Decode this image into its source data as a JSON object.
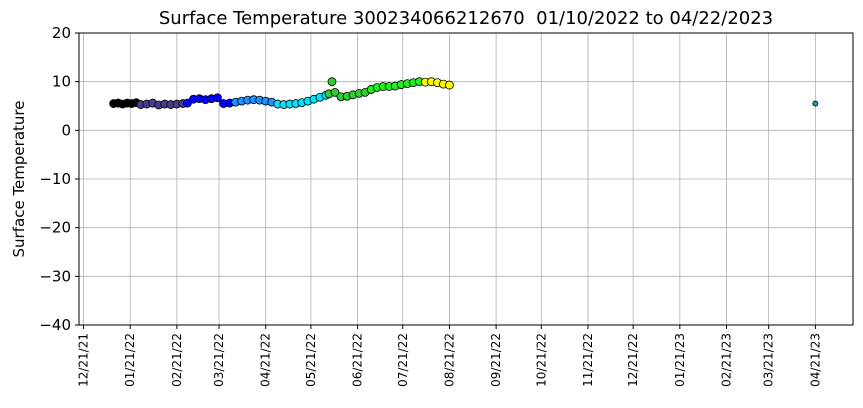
{
  "chart_data": {
    "type": "scatter",
    "title": "Surface Temperature 300234066212670  01/10/2022 to 04/22/2023",
    "ylabel": "Surface Temperature",
    "grid": true,
    "xlim": [
      "2021-12-18",
      "2023-05-16"
    ],
    "ylim": [
      -40,
      20
    ],
    "yticks": [
      {
        "value": -40,
        "label": "−40"
      },
      {
        "value": -30,
        "label": "−30"
      },
      {
        "value": -20,
        "label": "−20"
      },
      {
        "value": -10,
        "label": "−10"
      },
      0,
      10,
      20
    ],
    "xticks": [
      {
        "value": "2021-12-21",
        "label": "12/21/21"
      },
      {
        "value": "2022-01-21",
        "label": "01/21/22"
      },
      {
        "value": "2022-02-21",
        "label": "02/21/22"
      },
      {
        "value": "2022-03-21",
        "label": "03/21/22"
      },
      {
        "value": "2022-04-21",
        "label": "04/21/22"
      },
      {
        "value": "2022-05-21",
        "label": "05/21/22"
      },
      {
        "value": "2022-06-21",
        "label": "06/21/22"
      },
      {
        "value": "2022-07-21",
        "label": "07/21/22"
      },
      {
        "value": "2022-08-21",
        "label": "08/21/22"
      },
      {
        "value": "2022-09-21",
        "label": "09/21/22"
      },
      {
        "value": "2022-10-21",
        "label": "10/21/22"
      },
      {
        "value": "2022-11-21",
        "label": "11/21/22"
      },
      {
        "value": "2022-12-21",
        "label": "12/21/22"
      },
      {
        "value": "2023-01-21",
        "label": "01/21/23"
      },
      {
        "value": "2023-02-21",
        "label": "02/21/23"
      },
      {
        "value": "2023-03-21",
        "label": "03/21/23"
      },
      {
        "value": "2023-04-21",
        "label": "04/21/23"
      }
    ],
    "series": [
      {
        "color": "#000000",
        "x": [
          "2022-01-10",
          "2022-01-13",
          "2022-01-16",
          "2022-01-19",
          "2022-01-22",
          "2022-01-25"
        ],
        "values": [
          5.5,
          5.6,
          5.4,
          5.6,
          5.5,
          5.7
        ]
      },
      {
        "color": "#483d8b",
        "x": [
          "2022-01-28",
          "2022-02-01",
          "2022-02-05",
          "2022-02-09",
          "2022-02-13",
          "2022-02-17",
          "2022-02-21",
          "2022-02-25"
        ],
        "values": [
          5.3,
          5.4,
          5.6,
          5.2,
          5.4,
          5.3,
          5.4,
          5.5
        ]
      },
      {
        "color": "#0000ff",
        "x": [
          "2022-02-28",
          "2022-03-04",
          "2022-03-08",
          "2022-03-12",
          "2022-03-16",
          "2022-03-20",
          "2022-03-24",
          "2022-03-28"
        ],
        "values": [
          5.6,
          6.4,
          6.5,
          6.3,
          6.5,
          6.7,
          5.5,
          5.6
        ]
      },
      {
        "color": "#1e90ff",
        "x": [
          "2022-04-01",
          "2022-04-05",
          "2022-04-09",
          "2022-04-13",
          "2022-04-17",
          "2022-04-21",
          "2022-04-25"
        ],
        "values": [
          5.8,
          6.0,
          6.2,
          6.3,
          6.2,
          6.0,
          5.8
        ]
      },
      {
        "color": "#00e5ff",
        "x": [
          "2022-04-29",
          "2022-05-03",
          "2022-05-07",
          "2022-05-11",
          "2022-05-15",
          "2022-05-19",
          "2022-05-23",
          "2022-05-27",
          "2022-05-31"
        ],
        "values": [
          5.4,
          5.3,
          5.4,
          5.5,
          5.7,
          6.0,
          6.4,
          6.8,
          7.2
        ]
      },
      {
        "color": "#32cd32",
        "x": [
          "2022-06-02",
          "2022-06-04",
          "2022-06-06",
          "2022-06-10",
          "2022-06-14",
          "2022-06-18",
          "2022-06-22",
          "2022-06-26"
        ],
        "values": [
          7.5,
          10.0,
          7.8,
          6.9,
          7.0,
          7.3,
          7.6,
          7.8
        ]
      },
      {
        "color": "#22ee22",
        "x": [
          "2022-06-30",
          "2022-07-04",
          "2022-07-08",
          "2022-07-12",
          "2022-07-16",
          "2022-07-20",
          "2022-07-24",
          "2022-07-28",
          "2022-08-01"
        ],
        "values": [
          8.4,
          8.8,
          9.0,
          9.0,
          9.1,
          9.4,
          9.6,
          9.8,
          10.0
        ]
      },
      {
        "color": "#ffff00",
        "x": [
          "2022-08-05",
          "2022-08-09",
          "2022-08-13",
          "2022-08-17",
          "2022-08-21"
        ],
        "values": [
          9.9,
          10.0,
          9.8,
          9.5,
          9.3
        ]
      },
      {
        "color": "#1f9fbf",
        "x": [
          "2023-04-21"
        ],
        "values": [
          5.5
        ]
      }
    ]
  }
}
